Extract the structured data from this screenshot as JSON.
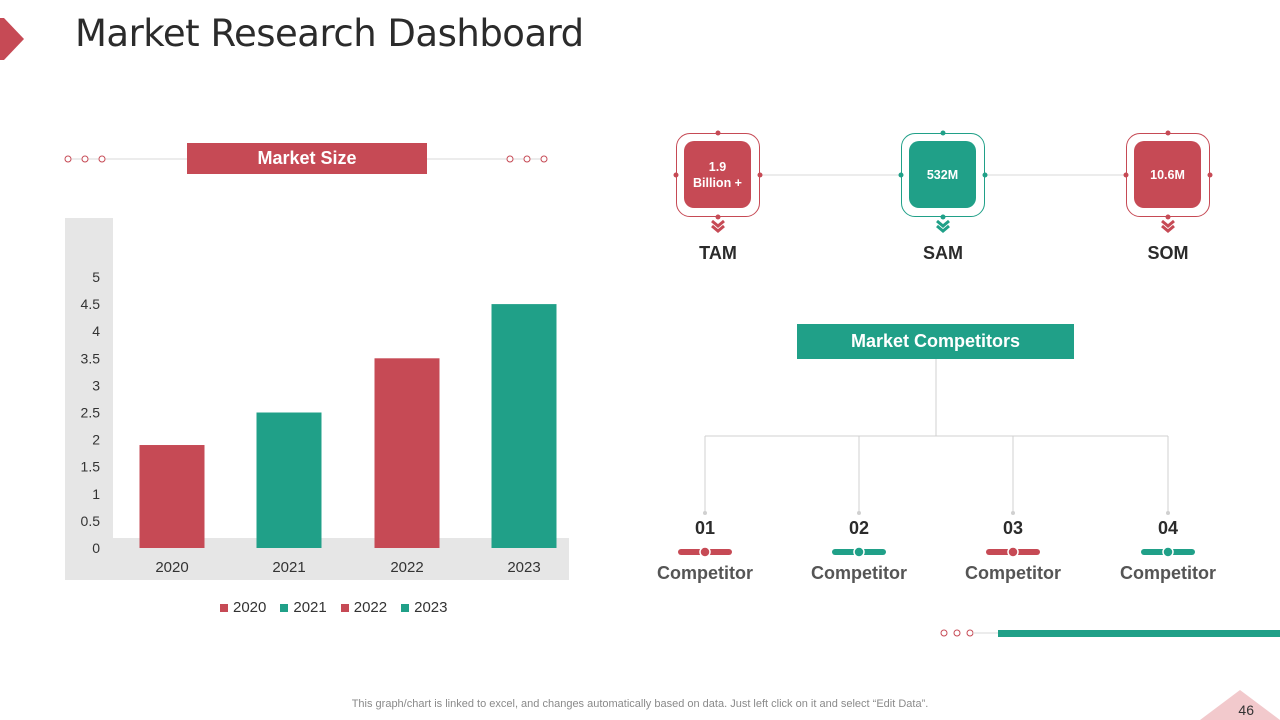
{
  "header": {
    "title": "Market Research Dashboard"
  },
  "colors": {
    "red": "#c64a55",
    "teal": "#20a088",
    "light_gray": "#e6e6e6"
  },
  "market_size": {
    "banner": "Market Size"
  },
  "chart_data": {
    "type": "bar",
    "title": "Market Size",
    "categories": [
      "2020",
      "2021",
      "2022",
      "2023"
    ],
    "values": [
      1.9,
      2.5,
      3.5,
      4.5
    ],
    "bar_colors": [
      "#c64a55",
      "#20a088",
      "#c64a55",
      "#20a088"
    ],
    "ylim": [
      0,
      5
    ],
    "yticks": [
      "0",
      "0.5",
      "1",
      "1.5",
      "2",
      "2.5",
      "3",
      "3.5",
      "4",
      "4.5",
      "5"
    ],
    "xlabel": "",
    "ylabel": "",
    "legend": [
      {
        "label": "2020",
        "color": "#c64a55"
      },
      {
        "label": "2021",
        "color": "#20a088"
      },
      {
        "label": "2022",
        "color": "#c64a55"
      },
      {
        "label": "2023",
        "color": "#20a088"
      }
    ],
    "legend_position": "bottom"
  },
  "metrics": [
    {
      "value": "1.9 Billion +",
      "label": "TAM",
      "color": "#c64a55"
    },
    {
      "value": "532M",
      "label": "SAM",
      "color": "#20a088"
    },
    {
      "value": "10.6M",
      "label": "SOM",
      "color": "#c64a55"
    }
  ],
  "competitors": {
    "banner": "Market Competitors",
    "items": [
      {
        "number": "01",
        "label": "Competitor",
        "color": "#c64a55"
      },
      {
        "number": "02",
        "label": "Competitor",
        "color": "#20a088"
      },
      {
        "number": "03",
        "label": "Competitor",
        "color": "#c64a55"
      },
      {
        "number": "04",
        "label": "Competitor",
        "color": "#20a088"
      }
    ]
  },
  "footer": {
    "note": "This graph/chart is linked to excel,  and changes automatically based on data. Just left click on it and select “Edit Data”.",
    "page_number": "46"
  }
}
